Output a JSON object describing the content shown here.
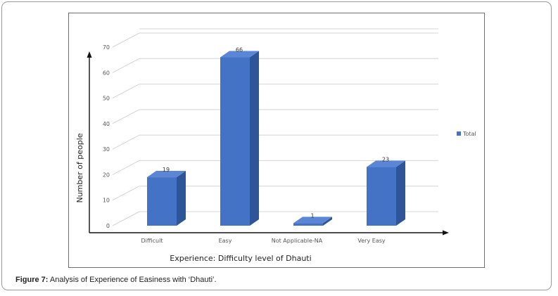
{
  "caption": {
    "label": "Figure 7:",
    "text": " Analysis of Experience of Easiness with ‘Dhauti’."
  },
  "chart_data": {
    "type": "bar",
    "style": "3d-column",
    "categories": [
      "Difficult",
      "Easy",
      "Not Applicable-NA",
      "Very Easy"
    ],
    "series": [
      {
        "name": "Total",
        "values": [
          19,
          66,
          1,
          23
        ],
        "color": "#4472c4"
      }
    ],
    "data_labels": [
      "19",
      "66",
      "1",
      "23"
    ],
    "xlabel": "Experience: Difficulty level of Dhauti",
    "ylabel": "Number of people",
    "ylim": [
      0,
      70
    ],
    "yticks": [
      0,
      10,
      20,
      30,
      40,
      50,
      60,
      70
    ],
    "grid": true,
    "legend": "right"
  }
}
